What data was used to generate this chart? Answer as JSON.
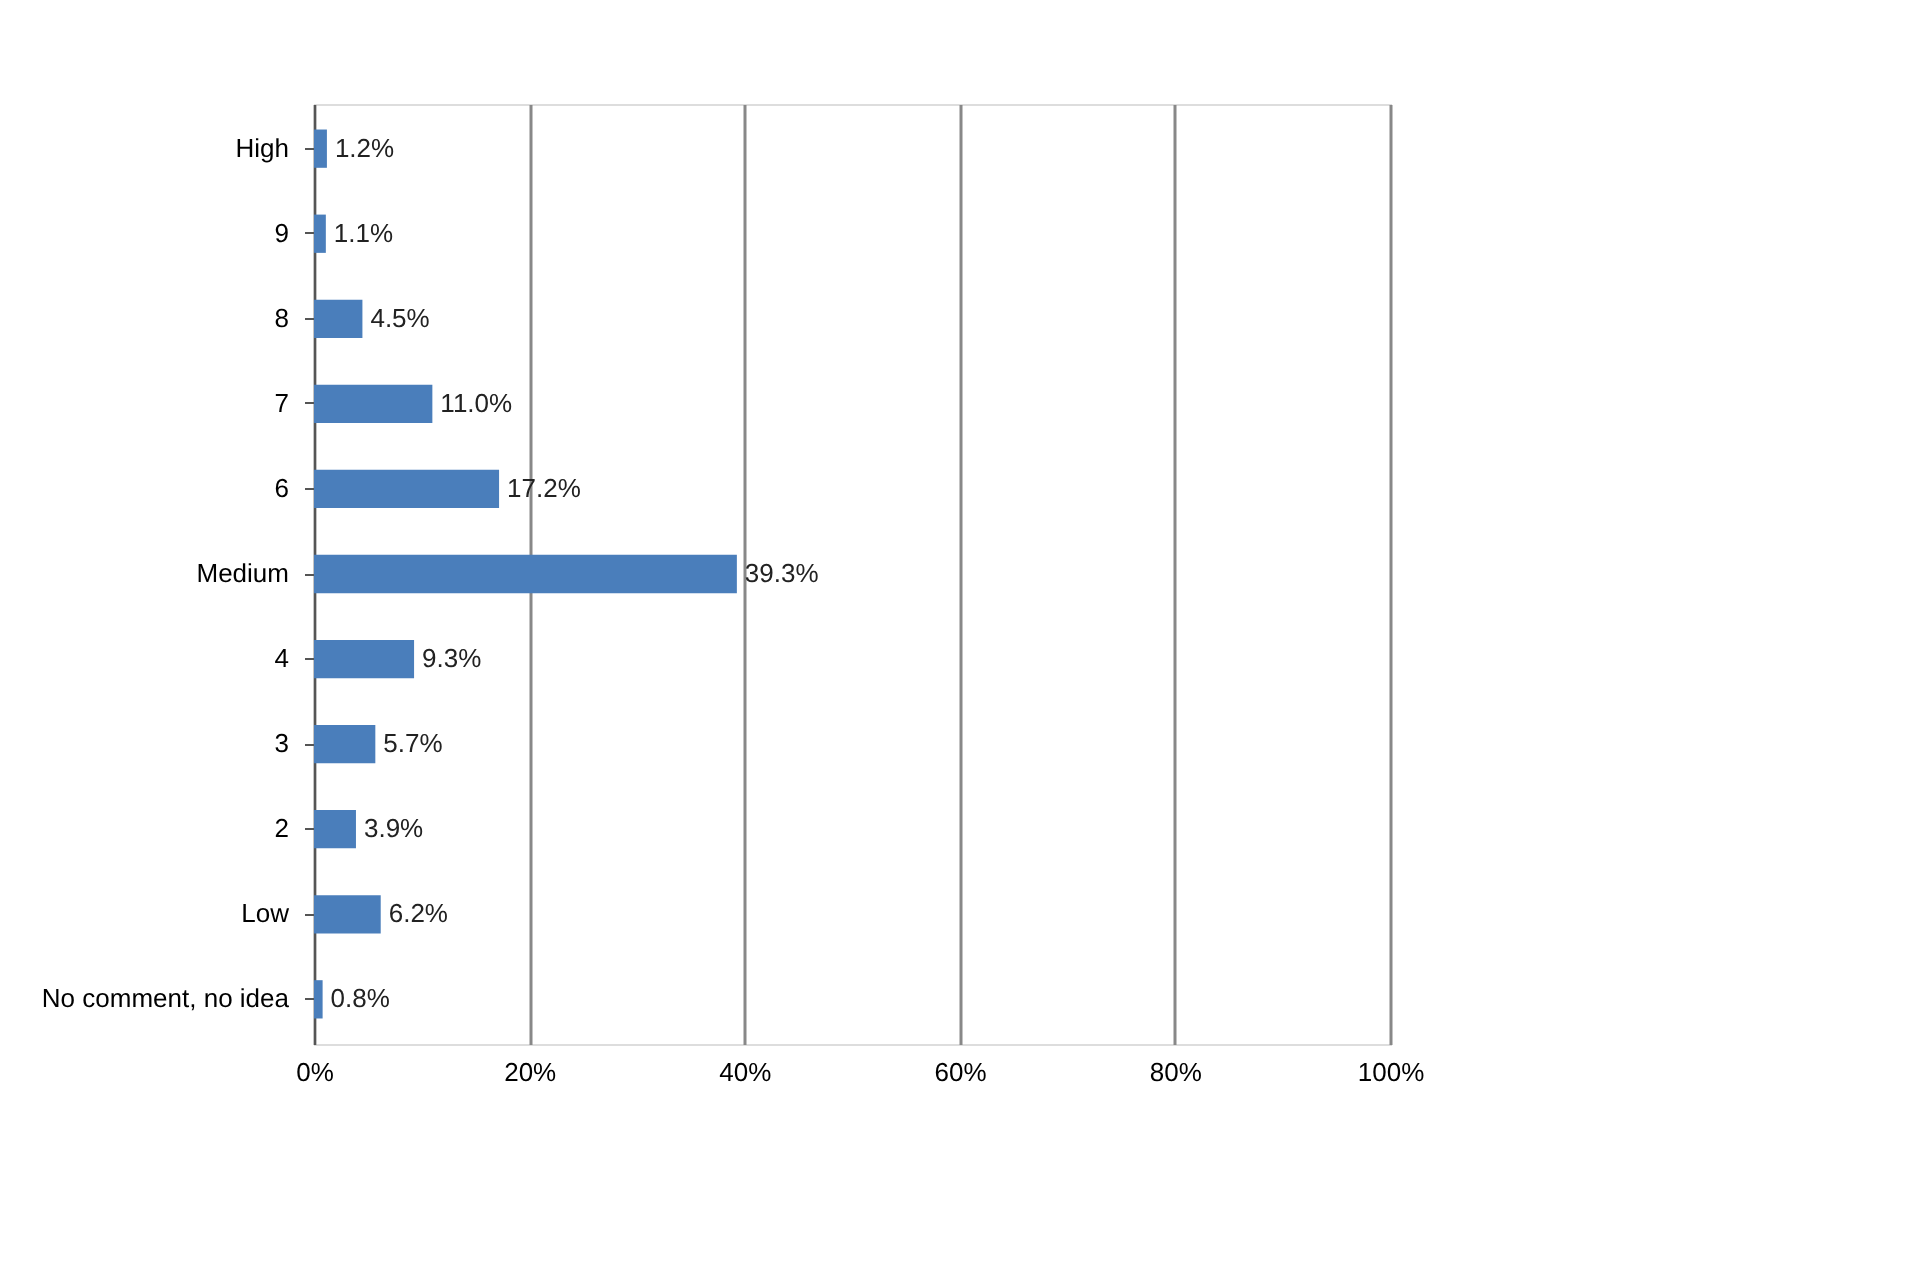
{
  "chart_data": {
    "type": "bar",
    "orientation": "horizontal",
    "categories": [
      "High",
      "9",
      "8",
      "7",
      "6",
      "Medium",
      "4",
      "3",
      "2",
      "Low",
      "No comment, no idea"
    ],
    "values": [
      1.2,
      1.1,
      4.5,
      11.0,
      17.2,
      39.3,
      9.3,
      5.7,
      3.9,
      6.2,
      0.8
    ],
    "value_labels": [
      "1.2%",
      "1.1%",
      "4.5%",
      "11.0%",
      "17.2%",
      "39.3%",
      "9.3%",
      "5.7%",
      "3.9%",
      "6.2%",
      "0.8%"
    ],
    "color": "#4a7ebb",
    "xlim": [
      0,
      100
    ],
    "xticks": [
      {
        "value": 0,
        "label": "0%"
      },
      {
        "value": 20,
        "label": "20%"
      },
      {
        "value": 40,
        "label": "40%"
      },
      {
        "value": 60,
        "label": "60%"
      },
      {
        "value": 80,
        "label": "80%"
      },
      {
        "value": 100,
        "label": "100%"
      }
    ],
    "grid": "x"
  }
}
